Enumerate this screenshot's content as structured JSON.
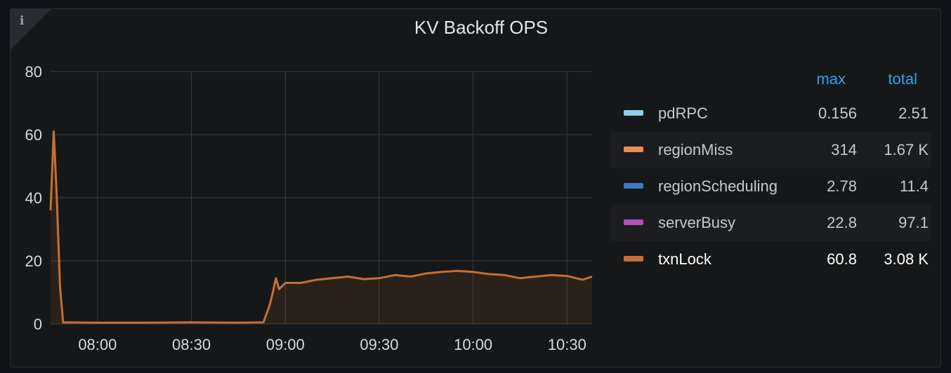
{
  "panel": {
    "title": "KV Backoff OPS",
    "info_icon": "info-icon"
  },
  "legend": {
    "headers": {
      "max": "max",
      "total": "total"
    },
    "items": [
      {
        "name": "pdRPC",
        "max": "0.156",
        "total": "2.51",
        "color": "#8ad1e8"
      },
      {
        "name": "regionMiss",
        "max": "314",
        "total": "1.67 K",
        "color": "#ea8d52"
      },
      {
        "name": "regionScheduling",
        "max": "2.78",
        "total": "11.4",
        "color": "#3e78c4"
      },
      {
        "name": "serverBusy",
        "max": "22.8",
        "total": "97.1",
        "color": "#b351b9"
      },
      {
        "name": "txnLock",
        "max": "60.8",
        "total": "3.08 K",
        "color": "#c36f34"
      }
    ]
  },
  "chart_data": {
    "type": "line",
    "y_ticks": [
      "0",
      "20",
      "40",
      "60",
      "80"
    ],
    "x_ticks": [
      "08:00",
      "08:30",
      "09:00",
      "09:30",
      "10:00",
      "10:30"
    ],
    "ylim": [
      0,
      80
    ],
    "xlim": [
      "07:45",
      "10:38"
    ],
    "grid": true,
    "series": [
      {
        "name": "txnLock",
        "color": "#c36f34",
        "fill": true,
        "points": [
          [
            "07:45",
            36
          ],
          [
            "07:46",
            61
          ],
          [
            "07:47",
            40
          ],
          [
            "07:48",
            12
          ],
          [
            "07:49",
            0.5
          ],
          [
            "08:00",
            0.4
          ],
          [
            "08:15",
            0.4
          ],
          [
            "08:30",
            0.5
          ],
          [
            "08:45",
            0.4
          ],
          [
            "08:53",
            0.5
          ],
          [
            "08:55",
            6
          ],
          [
            "08:56",
            10
          ],
          [
            "08:57",
            14.5
          ],
          [
            "08:58",
            11
          ],
          [
            "09:00",
            13
          ],
          [
            "09:05",
            13
          ],
          [
            "09:10",
            14
          ],
          [
            "09:15",
            14.5
          ],
          [
            "09:20",
            15
          ],
          [
            "09:25",
            14.2
          ],
          [
            "09:30",
            14.5
          ],
          [
            "09:35",
            15.5
          ],
          [
            "09:40",
            15
          ],
          [
            "09:45",
            16
          ],
          [
            "09:50",
            16.5
          ],
          [
            "09:55",
            16.8
          ],
          [
            "10:00",
            16.5
          ],
          [
            "10:05",
            15.8
          ],
          [
            "10:10",
            15.5
          ],
          [
            "10:15",
            14.5
          ],
          [
            "10:20",
            15
          ],
          [
            "10:25",
            15.5
          ],
          [
            "10:30",
            15.2
          ],
          [
            "10:35",
            14
          ],
          [
            "10:38",
            15
          ]
        ]
      }
    ]
  }
}
